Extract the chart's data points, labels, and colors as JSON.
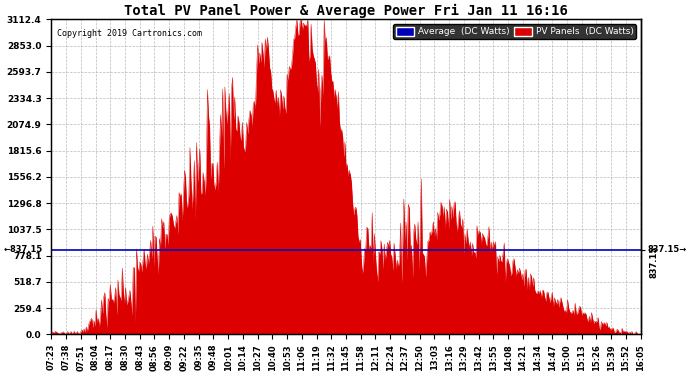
{
  "title": "Total PV Panel Power & Average Power Fri Jan 11 16:16",
  "copyright": "Copyright 2019 Cartronics.com",
  "legend_labels": [
    "Average  (DC Watts)",
    "PV Panels  (DC Watts)"
  ],
  "legend_colors": [
    "#0000bb",
    "#dd0000"
  ],
  "average_value": 837.15,
  "y_ticks": [
    0.0,
    259.4,
    518.7,
    778.1,
    1037.5,
    1296.8,
    1556.2,
    1815.6,
    2074.9,
    2334.3,
    2593.7,
    2853.0,
    3112.4
  ],
  "ymax": 3112.4,
  "ymin": 0.0,
  "background_color": "#ffffff",
  "plot_bg_color": "#ffffff",
  "grid_color": "#aaaaaa",
  "fill_color": "#dd0000",
  "avg_line_color": "#0000bb",
  "x_labels": [
    "07:23",
    "07:38",
    "07:51",
    "08:04",
    "08:17",
    "08:30",
    "08:43",
    "08:56",
    "09:09",
    "09:22",
    "09:35",
    "09:48",
    "10:01",
    "10:14",
    "10:27",
    "10:40",
    "10:53",
    "11:06",
    "11:19",
    "11:32",
    "11:45",
    "11:58",
    "12:11",
    "12:24",
    "12:37",
    "12:50",
    "13:03",
    "13:16",
    "13:29",
    "13:42",
    "13:55",
    "14:08",
    "14:21",
    "14:34",
    "14:47",
    "15:00",
    "15:13",
    "15:26",
    "15:39",
    "15:52",
    "16:05"
  ]
}
